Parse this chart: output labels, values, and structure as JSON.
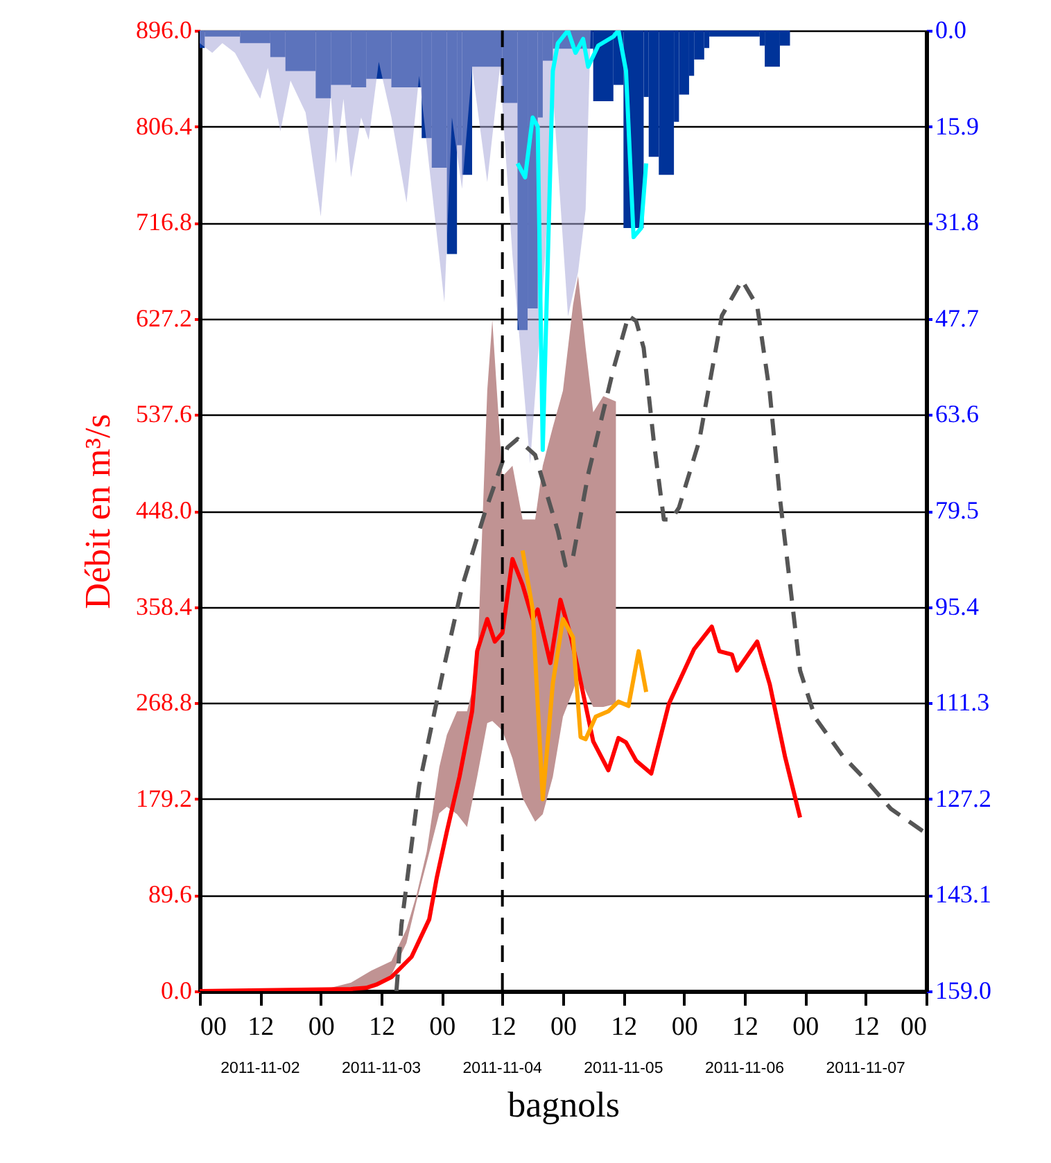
{
  "chart_data": {
    "type": "line",
    "xlabel": "bagnols",
    "ylabel": "Débit en m³/s",
    "xlim": [
      "2011-11-02T00:00",
      "2011-11-08T00:00"
    ],
    "xticks": [
      {
        "value": "2011-11-02T00:00",
        "label": "00"
      },
      {
        "value": "2011-11-02T12:00",
        "label": "12"
      },
      {
        "value": "2011-11-03T00:00",
        "label": "00"
      },
      {
        "value": "2011-11-03T12:00",
        "label": "12"
      },
      {
        "value": "2011-11-04T00:00",
        "label": "00"
      },
      {
        "value": "2011-11-04T12:00",
        "label": "12"
      },
      {
        "value": "2011-11-05T00:00",
        "label": "00"
      },
      {
        "value": "2011-11-05T12:00",
        "label": "12"
      },
      {
        "value": "2011-11-06T00:00",
        "label": "00"
      },
      {
        "value": "2011-11-06T12:00",
        "label": "12"
      },
      {
        "value": "2011-11-07T00:00",
        "label": "00"
      },
      {
        "value": "2011-11-07T12:00",
        "label": "12"
      },
      {
        "value": "2011-11-08T00:00",
        "label": "00"
      }
    ],
    "x2lim": [
      "2011-11-02T00:00",
      "2011-11-08T00:00"
    ],
    "x2ticks": [
      {
        "value": "2011-11-02T12:00",
        "label": "2011-11-02"
      },
      {
        "value": "2011-11-03T12:00",
        "label": "2011-11-03"
      },
      {
        "value": "2011-11-04T12:00",
        "label": "2011-11-04"
      },
      {
        "value": "2011-11-05T12:00",
        "label": "2011-11-05"
      },
      {
        "value": "2011-11-06T12:00",
        "label": "2011-11-06"
      },
      {
        "value": "2011-11-07T12:00",
        "label": "2011-11-07"
      }
    ],
    "ylim": [
      0,
      896
    ],
    "yticks": [
      {
        "value": 0,
        "label": "0.0"
      },
      89.6,
      179.2,
      268.8,
      358.4,
      {
        "value": 448,
        "label": "448.0"
      },
      537.6,
      627.2,
      716.8,
      806.4,
      {
        "value": 896,
        "label": "896.0"
      }
    ],
    "y2lim": [
      159,
      0
    ],
    "y2ticks": [
      {
        "value": 0,
        "label": "0.0"
      },
      15.9,
      31.8,
      47.7,
      63.6,
      79.5,
      95.4,
      111.3,
      127.2,
      143.1,
      {
        "value": 159,
        "label": "159.0"
      }
    ],
    "grid": "y",
    "ref_lines": [
      {
        "axis": "x",
        "value": "2011-11-04T12:00",
        "color": "#000000",
        "line_style": "dashed"
      }
    ],
    "series": [
      {
        "type": "histogram",
        "axis": "y2",
        "color": "#003399",
        "bins": [
          "2011-11-02T00:00",
          "2011-11-02T01:00",
          "2011-11-02T08:00",
          "2011-11-02T14:00",
          "2011-11-02T17:00",
          "2011-11-02T23:00",
          "2011-11-03T02:00",
          "2011-11-03T06:00",
          "2011-11-03T09:00",
          "2011-11-03T14:00",
          "2011-11-03T20:00",
          "2011-11-03T22:00",
          "2011-11-04T01:00",
          "2011-11-04T03:00",
          "2011-11-04T04:00",
          "2011-11-04T06:00",
          "2011-11-04T12:00",
          "2011-11-04T15:00",
          "2011-11-04T17:00",
          "2011-11-04T19:00",
          "2011-11-04T20:00",
          "2011-11-04T22:00",
          "2011-11-05T06:00",
          "2011-11-05T10:00",
          "2011-11-05T12:00",
          "2011-11-05T16:00",
          "2011-11-05T17:00",
          "2011-11-05T19:00",
          "2011-11-05T22:00",
          "2011-11-05T23:00",
          "2011-11-06T01:00",
          "2011-11-06T02:00",
          "2011-11-06T04:00",
          "2011-11-06T05:00",
          "2011-11-06T15:00",
          "2011-11-06T16:00",
          "2011-11-06T19:00",
          "2011-11-06T21:00"
        ],
        "values": [
          2.9,
          1,
          2.1,
          4.4,
          6.7,
          11.2,
          9,
          9.4,
          8,
          9.4,
          17.8,
          22.7,
          37,
          19,
          23.9,
          6,
          12,
          49.6,
          46,
          14.4,
          5,
          3,
          11.7,
          9,
          32.7,
          11,
          20.9,
          23.9,
          15.1,
          10.6,
          7.5,
          4.8,
          2.9,
          1,
          2.5,
          6,
          2.5
        ]
      },
      {
        "type": "area",
        "axis": "y2",
        "color": "#a8a8d8",
        "x": [
          "2011-11-02T00:00",
          "2011-11-02T02:30",
          "2011-11-02T04:30",
          "2011-11-02T07:00",
          "2011-11-02T12:00",
          "2011-11-02T13:30",
          "2011-11-02T16:00",
          "2011-11-02T18:00",
          "2011-11-02T21:00",
          "2011-11-03T00:00",
          "2011-11-03T02:00",
          "2011-11-03T03:00",
          "2011-11-03T04:30",
          "2011-11-03T06:00",
          "2011-11-03T08:00",
          "2011-11-03T09:30",
          "2011-11-03T11:30",
          "2011-11-03T14:00",
          "2011-11-03T17:00",
          "2011-11-03T19:30",
          "2011-11-04T00:30",
          "2011-11-04T02:00",
          "2011-11-04T04:00",
          "2011-11-04T06:00",
          "2011-11-04T09:00",
          "2011-11-04T11:30",
          "2011-11-04T14:00",
          "2011-11-04T17:30",
          "2011-11-04T20:30",
          "2011-11-04T22:00",
          "2011-11-05T01:00",
          "2011-11-05T03:00",
          "2011-11-05T04:30",
          "2011-11-05T05:30"
        ],
        "values": [
          2.1,
          3.7,
          2.1,
          3.7,
          11.3,
          6.2,
          16.7,
          8.3,
          13.6,
          30.8,
          10.6,
          22.0,
          11.3,
          24.3,
          14.4,
          18.1,
          5.2,
          14.4,
          28.5,
          7.5,
          45.0,
          14.4,
          26.2,
          6.2,
          25.1,
          6.2,
          37.3,
          71.7,
          37.3,
          10.0,
          47.3,
          40.0,
          29.6,
          0
        ]
      },
      {
        "axis": "y2",
        "color": "#00ffff",
        "x": [
          "2011-11-04T15:00",
          "2011-11-04T16:30",
          "2011-11-04T18:00",
          "2011-11-04T19:00",
          "2011-11-04T20:00",
          "2011-11-04T22:00",
          "2011-11-04T23:00",
          "2011-11-05T01:00",
          "2011-11-05T02:30",
          "2011-11-05T04:00",
          "2011-11-05T05:00",
          "2011-11-05T07:00",
          "2011-11-05T10:00",
          "2011-11-05T11:00",
          "2011-11-05T12:30",
          "2011-11-05T14:00",
          "2011-11-05T15:30",
          "2011-11-05T16:30"
        ],
        "values": [
          22.0,
          24.3,
          14.4,
          15.9,
          69.4,
          6.7,
          2.1,
          0.0,
          3.7,
          1.4,
          6.0,
          2.5,
          1.0,
          0.0,
          6.7,
          34.2,
          32.7,
          22.0
        ]
      },
      {
        "type": "area",
        "color": "#c09393",
        "x": [
          "2011-11-03T01:00",
          "2011-11-03T06:00",
          "2011-11-03T10:00",
          "2011-11-03T14:00",
          "2011-11-03T17:00",
          "2011-11-03T19:00",
          "2011-11-03T21:00",
          "2011-11-03T23:30",
          "2011-11-04T01:00",
          "2011-11-04T03:00",
          "2011-11-04T05:00",
          "2011-11-04T07:00",
          "2011-11-04T09:00",
          "2011-11-04T10:00",
          "2011-11-04T12:00",
          "2011-11-04T14:00",
          "2011-11-04T16:00",
          "2011-11-04T18:30",
          "2011-11-04T20:00",
          "2011-11-04T22:00",
          "2011-11-05T00:00",
          "2011-11-05T02:00",
          "2011-11-05T03:00",
          "2011-11-05T04:30",
          "2011-11-05T06:00",
          "2011-11-05T08:00",
          "2011-11-05T10:30"
        ],
        "values": [
          null,
          null,
          null,
          null,
          null,
          null,
          null,
          null,
          null,
          null,
          null,
          null,
          null,
          null,
          null,
          null,
          null,
          null,
          null,
          null,
          null,
          null,
          null,
          null,
          null,
          null,
          null
        ],
        "lower": [
          0,
          1,
          3,
          15,
          45,
          84,
          120,
          166,
          172,
          165,
          153,
          200,
          250,
          252,
          243,
          217,
          180,
          158,
          165,
          200,
          256,
          280,
          295,
          280,
          265,
          265,
          268
        ],
        "upper": [
          2,
          8,
          19,
          28,
          58,
          90,
          130,
          209,
          239,
          261,
          261,
          300,
          560,
          626,
          480,
          490,
          440,
          440,
          490,
          526,
          560,
          640,
          667,
          600,
          540,
          555,
          550
        ]
      },
      {
        "color": "#ff0000",
        "x": [
          "2011-11-02T00:00",
          "2011-11-03T06:00",
          "2011-11-03T09:00",
          "2011-11-03T11:00",
          "2011-11-03T14:00",
          "2011-11-03T18:00",
          "2011-11-03T21:30",
          "2011-11-03T23:00",
          "2011-11-04T01:00",
          "2011-11-04T03:30",
          "2011-11-04T06:00",
          "2011-11-04T07:00",
          "2011-11-04T09:00",
          "2011-11-04T10:30",
          "2011-11-04T12:00",
          "2011-11-04T14:00",
          "2011-11-04T16:00",
          "2011-11-04T18:00",
          "2011-11-04T19:00",
          "2011-11-04T21:30",
          "2011-11-04T23:30",
          "2011-11-05T01:30",
          "2011-11-05T03:00",
          "2011-11-05T06:00",
          "2011-11-05T09:00",
          "2011-11-05T11:00",
          "2011-11-05T12:30",
          "2011-11-05T14:30",
          "2011-11-05T17:30",
          "2011-11-05T21:00",
          "2011-11-06T02:00",
          "2011-11-06T05:30",
          "2011-11-06T07:00",
          "2011-11-06T09:30",
          "2011-11-06T10:30",
          "2011-11-06T14:30",
          "2011-11-06T17:00",
          "2011-11-06T20:00",
          "2011-11-06T23:00"
        ],
        "values": [
          0,
          2,
          3,
          6,
          13,
          32,
          67,
          106,
          149,
          200,
          261,
          317,
          347,
          326,
          334,
          403,
          379,
          347,
          356,
          306,
          365,
          332,
          300,
          233,
          206,
          236,
          232,
          215,
          203,
          268,
          319,
          340,
          317,
          314,
          299,
          326,
          286,
          219,
          162
        ]
      },
      {
        "color": "#ffa500",
        "x": [
          "2011-11-04T16:00",
          "2011-11-04T18:00",
          "2011-11-04T20:00",
          "2011-11-04T22:00",
          "2011-11-05T00:00",
          "2011-11-05T02:00",
          "2011-11-05T03:30",
          "2011-11-05T04:30",
          "2011-11-05T06:30",
          "2011-11-05T09:00",
          "2011-11-05T11:00",
          "2011-11-05T13:00",
          "2011-11-05T15:00",
          "2011-11-05T16:30"
        ],
        "values": [
          411,
          356,
          179,
          287,
          347,
          330,
          237,
          235,
          256,
          261,
          270,
          266,
          317,
          279
        ]
      },
      {
        "color": "#555555",
        "line_style": "dashed",
        "x": [
          "2011-11-03T15:00",
          "2011-11-03T16:00",
          "2011-11-03T19:30",
          "2011-11-04T00:30",
          "2011-11-04T04:00",
          "2011-11-04T08:30",
          "2011-11-04T13:00",
          "2011-11-04T15:00",
          "2011-11-04T18:30",
          "2011-11-04T23:00",
          "2011-11-05T00:30",
          "2011-11-05T02:00",
          "2011-11-05T05:00",
          "2011-11-05T10:00",
          "2011-11-05T13:00",
          "2011-11-05T14:30",
          "2011-11-05T16:00",
          "2011-11-05T18:00",
          "2011-11-05T20:00",
          "2011-11-05T21:30",
          "2011-11-05T23:00",
          "2011-11-06T03:00",
          "2011-11-06T07:30",
          "2011-11-06T11:30",
          "2011-11-06T14:30",
          "2011-11-06T17:00",
          "2011-11-06T19:00",
          "2011-11-06T21:00",
          "2011-11-06T23:00",
          "2011-11-07T02:00",
          "2011-11-07T07:30",
          "2011-11-07T12:00",
          "2011-11-07T17:00",
          "2011-11-08T00:00"
        ],
        "values": [
          0,
          62,
          192,
          304,
          377,
          446,
          507,
          515,
          500,
          429,
          397,
          405,
          482,
          580,
          630,
          625,
          600,
          513,
          440,
          440,
          451,
          513,
          630,
          663,
          639,
          558,
          460,
          380,
          299,
          255,
          219,
          197,
          170,
          147
        ]
      }
    ]
  }
}
